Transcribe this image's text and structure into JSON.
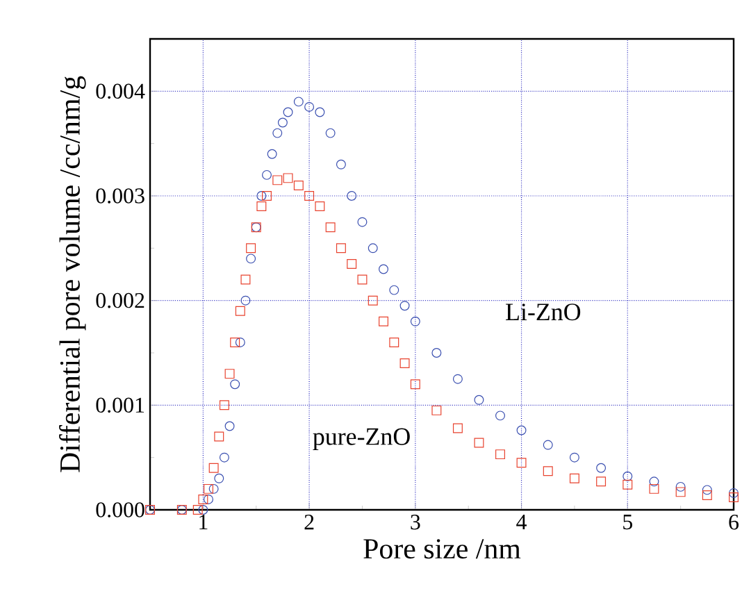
{
  "chart_data": {
    "type": "scatter",
    "xlabel": "Pore size /nm",
    "ylabel": "Differential pore volume /cc/nm/g",
    "xlim": [
      0.5,
      6
    ],
    "ylim": [
      0,
      0.0045
    ],
    "xticks": [
      1,
      2,
      3,
      4,
      5,
      6
    ],
    "yticks": [
      {
        "value": 0,
        "label": "0.000"
      },
      {
        "value": 0.001,
        "label": "0.001"
      },
      {
        "value": 0.002,
        "label": "0.002"
      },
      {
        "value": 0.003,
        "label": "0.003"
      },
      {
        "value": 0.004,
        "label": "0.004"
      }
    ],
    "grid": true,
    "legend": false,
    "series": [
      {
        "name": "Li-ZnO",
        "color": "#3a4fb0",
        "marker": "circle",
        "x": [
          0.5,
          0.8,
          1.0,
          1.05,
          1.1,
          1.15,
          1.2,
          1.25,
          1.3,
          1.35,
          1.4,
          1.45,
          1.5,
          1.55,
          1.6,
          1.65,
          1.7,
          1.75,
          1.8,
          1.9,
          2.0,
          2.1,
          2.2,
          2.3,
          2.4,
          2.5,
          2.6,
          2.7,
          2.8,
          2.9,
          3.0,
          3.2,
          3.4,
          3.6,
          3.8,
          4.0,
          4.25,
          4.5,
          4.75,
          5.0,
          5.25,
          5.5,
          5.75,
          6.0
        ],
        "values": [
          0,
          0,
          0,
          0.0001,
          0.0002,
          0.0003,
          0.0005,
          0.0008,
          0.0012,
          0.0016,
          0.002,
          0.0024,
          0.0027,
          0.003,
          0.0032,
          0.0034,
          0.0036,
          0.0037,
          0.0038,
          0.0039,
          0.00385,
          0.0038,
          0.0036,
          0.0033,
          0.003,
          0.00275,
          0.0025,
          0.0023,
          0.0021,
          0.00195,
          0.0018,
          0.0015,
          0.00125,
          0.00105,
          0.0009,
          0.00076,
          0.00062,
          0.0005,
          0.0004,
          0.00032,
          0.00027,
          0.00022,
          0.00019,
          0.00016
        ]
      },
      {
        "name": "pure-ZnO",
        "color": "#e8432f",
        "marker": "square",
        "x": [
          0.5,
          0.8,
          0.95,
          1.0,
          1.05,
          1.1,
          1.15,
          1.2,
          1.25,
          1.3,
          1.35,
          1.4,
          1.45,
          1.5,
          1.55,
          1.6,
          1.7,
          1.8,
          1.9,
          2.0,
          2.1,
          2.2,
          2.3,
          2.4,
          2.5,
          2.6,
          2.7,
          2.8,
          2.9,
          3.0,
          3.2,
          3.4,
          3.6,
          3.8,
          4.0,
          4.25,
          4.5,
          4.75,
          5.0,
          5.25,
          5.5,
          5.75,
          6.0
        ],
        "values": [
          0,
          0,
          0,
          0.0001,
          0.0002,
          0.0004,
          0.0007,
          0.001,
          0.0013,
          0.0016,
          0.0019,
          0.0022,
          0.0025,
          0.0027,
          0.0029,
          0.003,
          0.00315,
          0.00317,
          0.0031,
          0.003,
          0.0029,
          0.0027,
          0.0025,
          0.00235,
          0.0022,
          0.002,
          0.0018,
          0.0016,
          0.0014,
          0.0012,
          0.00095,
          0.00078,
          0.00064,
          0.00053,
          0.00045,
          0.00037,
          0.0003,
          0.00027,
          0.00024,
          0.0002,
          0.00017,
          0.00014,
          0.00012
        ]
      }
    ]
  }
}
